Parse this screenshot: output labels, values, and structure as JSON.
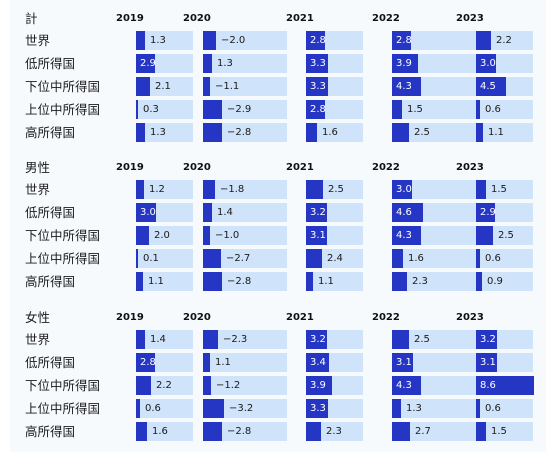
{
  "chart_data": {
    "type": "table",
    "years": [
      "2019",
      "2020",
      "2021",
      "2022",
      "2023"
    ],
    "colors": {
      "bar": "#2535c4",
      "cell_background": "#cfe4fa",
      "panel_background": "#f7fafd"
    },
    "sections": [
      {
        "title": "計",
        "rows": [
          {
            "label": "世界",
            "values": [
              1.3,
              -2.0,
              2.8,
              2.8,
              2.2
            ],
            "labels": [
              "1.3",
              "−2.0",
              "2.8",
              "2.8",
              "2.2"
            ]
          },
          {
            "label": "低所得国",
            "values": [
              2.9,
              1.3,
              3.3,
              3.9,
              3.0
            ],
            "labels": [
              "2.9",
              "1.3",
              "3.3",
              "3.9",
              "3.0"
            ]
          },
          {
            "label": "下位中所得国",
            "values": [
              2.1,
              -1.1,
              3.3,
              4.3,
              4.5
            ],
            "labels": [
              "2.1",
              "−1.1",
              "3.3",
              "4.3",
              "4.5"
            ]
          },
          {
            "label": "上位中所得国",
            "values": [
              0.3,
              -2.9,
              2.8,
              1.5,
              0.6
            ],
            "labels": [
              "0.3",
              "−2.9",
              "2.8",
              "1.5",
              "0.6"
            ]
          },
          {
            "label": "高所得国",
            "values": [
              1.3,
              -2.8,
              1.6,
              2.5,
              1.1
            ],
            "labels": [
              "1.3",
              "−2.8",
              "1.6",
              "2.5",
              "1.1"
            ]
          }
        ]
      },
      {
        "title": "男性",
        "rows": [
          {
            "label": "世界",
            "values": [
              1.2,
              -1.8,
              2.5,
              3.0,
              1.5
            ],
            "labels": [
              "1.2",
              "−1.8",
              "2.5",
              "3.0",
              "1.5"
            ]
          },
          {
            "label": "低所得国",
            "values": [
              3.0,
              1.4,
              3.2,
              4.6,
              2.9
            ],
            "labels": [
              "3.0",
              "1.4",
              "3.2",
              "4.6",
              "2.9"
            ]
          },
          {
            "label": "下位中所得国",
            "values": [
              2.0,
              -1.0,
              3.1,
              4.3,
              2.5
            ],
            "labels": [
              "2.0",
              "−1.0",
              "3.1",
              "4.3",
              "2.5"
            ]
          },
          {
            "label": "上位中所得国",
            "values": [
              0.1,
              -2.7,
              2.4,
              1.6,
              0.6
            ],
            "labels": [
              "0.1",
              "−2.7",
              "2.4",
              "1.6",
              "0.6"
            ]
          },
          {
            "label": "高所得国",
            "values": [
              1.1,
              -2.8,
              1.1,
              2.3,
              0.9
            ],
            "labels": [
              "1.1",
              "−2.8",
              "1.1",
              "2.3",
              "0.9"
            ]
          }
        ]
      },
      {
        "title": "女性",
        "rows": [
          {
            "label": "世界",
            "values": [
              1.4,
              -2.3,
              3.2,
              2.5,
              3.2
            ],
            "labels": [
              "1.4",
              "−2.3",
              "3.2",
              "2.5",
              "3.2"
            ]
          },
          {
            "label": "低所得国",
            "values": [
              2.8,
              1.1,
              3.4,
              3.1,
              3.1
            ],
            "labels": [
              "2.8",
              "1.1",
              "3.4",
              "3.1",
              "3.1"
            ]
          },
          {
            "label": "下位中所得国",
            "values": [
              2.2,
              -1.2,
              3.9,
              4.3,
              8.6
            ],
            "labels": [
              "2.2",
              "−1.2",
              "3.9",
              "4.3",
              "8.6"
            ]
          },
          {
            "label": "上位中所得国",
            "values": [
              0.6,
              -3.2,
              3.3,
              1.3,
              0.6
            ],
            "labels": [
              "0.6",
              "−3.2",
              "3.3",
              "1.3",
              "0.6"
            ]
          },
          {
            "label": "高所得国",
            "values": [
              1.6,
              -2.8,
              2.3,
              2.7,
              1.5
            ],
            "labels": [
              "1.6",
              "−2.8",
              "2.3",
              "2.7",
              "1.5"
            ]
          }
        ]
      }
    ]
  }
}
